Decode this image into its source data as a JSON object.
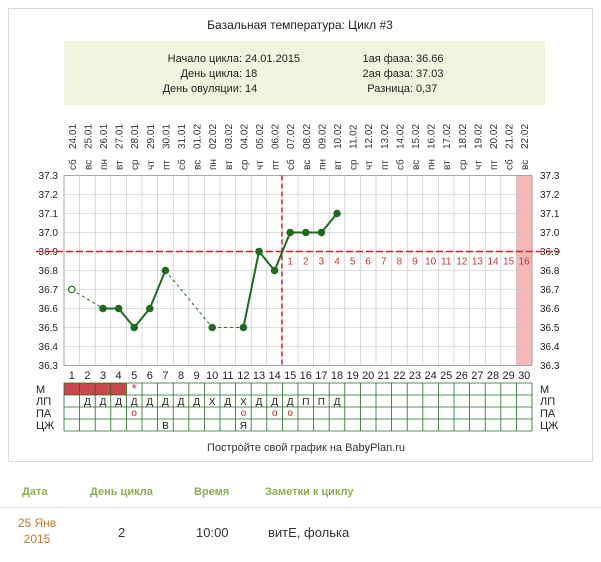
{
  "chart_data": {
    "type": "line",
    "title": "Базальная температура: Цикл #3",
    "info_left": [
      {
        "label": "Начало цикла:",
        "value": "24.01.2015"
      },
      {
        "label": "День цикла:",
        "value": "18"
      },
      {
        "label": "День овуляции:",
        "value": "14"
      }
    ],
    "info_right": [
      {
        "label": "1ая фаза:",
        "value": "36.66"
      },
      {
        "label": "2ая фаза:",
        "value": "37.03"
      },
      {
        "label": "Разница:",
        "value": "0,37"
      }
    ],
    "weekdays": [
      "сб",
      "вс",
      "пн",
      "вт",
      "ср",
      "чт",
      "пт",
      "сб",
      "вс",
      "пн",
      "вт",
      "ср",
      "чт",
      "пт",
      "сб",
      "вс",
      "пн",
      "вт",
      "ср",
      "чт",
      "пт",
      "сб",
      "вс",
      "пн",
      "вт",
      "ср",
      "чт",
      "пт",
      "сб",
      "вс"
    ],
    "dates": [
      "24.01",
      "25.01",
      "26.01",
      "27.01",
      "28.01",
      "29.01",
      "30.01",
      "31.01",
      "01.02",
      "02.02",
      "03.02",
      "04.02",
      "05.02",
      "06.02",
      "07.02",
      "08.02",
      "09.02",
      "10.02",
      "11.02",
      "12.02",
      "13.02",
      "14.02",
      "15.02",
      "16.02",
      "17.02",
      "18.02",
      "19.02",
      "20.02",
      "21.02",
      "22.02"
    ],
    "cycle_days": [
      1,
      2,
      3,
      4,
      5,
      6,
      7,
      8,
      9,
      10,
      11,
      12,
      13,
      14,
      15,
      16,
      17,
      18,
      19,
      20,
      21,
      22,
      23,
      24,
      25,
      26,
      27,
      28,
      29,
      30
    ],
    "y_ticks": [
      "37.3",
      "37.2",
      "37.1",
      "37.0",
      "36.9",
      "36.8",
      "36.7",
      "36.6",
      "36.5",
      "36.4",
      "36.3"
    ],
    "ylim": [
      36.3,
      37.3
    ],
    "coverline": 36.9,
    "ovulation_day": 14,
    "highlight_day": 30,
    "temperatures": [
      {
        "day": 1,
        "temp": 36.7,
        "excluded": true
      },
      {
        "day": 3,
        "temp": 36.6
      },
      {
        "day": 4,
        "temp": 36.6
      },
      {
        "day": 5,
        "temp": 36.5
      },
      {
        "day": 6,
        "temp": 36.6
      },
      {
        "day": 7,
        "temp": 36.8
      },
      {
        "day": 10,
        "temp": 36.5
      },
      {
        "day": 12,
        "temp": 36.5
      },
      {
        "day": 13,
        "temp": 36.9
      },
      {
        "day": 14,
        "temp": 36.8
      },
      {
        "day": 15,
        "temp": 37.0
      },
      {
        "day": 16,
        "temp": 37.0
      },
      {
        "day": 17,
        "temp": 37.0
      },
      {
        "day": 18,
        "temp": 37.1
      }
    ],
    "dashed_gaps": [
      [
        1,
        3
      ],
      [
        7,
        10
      ],
      [
        10,
        12
      ]
    ],
    "phase2_labels": [
      "1",
      "2",
      "3",
      "4",
      "5",
      "6",
      "7",
      "8",
      "9",
      "10",
      "11",
      "12",
      "13",
      "14",
      "15",
      "16"
    ],
    "row_labels": [
      "М",
      "ЛП",
      "ПА",
      "ЦЖ"
    ],
    "menstruation_days": [
      1,
      2,
      3,
      4
    ],
    "menstruation_star_day": 5,
    "lp_marks": [
      {
        "day": 2,
        "v": "Д"
      },
      {
        "day": 3,
        "v": "Д"
      },
      {
        "day": 4,
        "v": "Д"
      },
      {
        "day": 5,
        "v": "Д"
      },
      {
        "day": 6,
        "v": "Д"
      },
      {
        "day": 7,
        "v": "Д"
      },
      {
        "day": 8,
        "v": "Д"
      },
      {
        "day": 9,
        "v": "Д"
      },
      {
        "day": 10,
        "v": "Х"
      },
      {
        "day": 11,
        "v": "Д"
      },
      {
        "day": 12,
        "v": "Х"
      },
      {
        "day": 13,
        "v": "Д"
      },
      {
        "day": 14,
        "v": "Д"
      },
      {
        "day": 15,
        "v": "Д"
      },
      {
        "day": 16,
        "v": "П"
      },
      {
        "day": 17,
        "v": "П"
      },
      {
        "day": 18,
        "v": "Д"
      }
    ],
    "pa_marks": [
      {
        "day": 5,
        "v": "о"
      },
      {
        "day": 12,
        "v": "о"
      },
      {
        "day": 14,
        "v": "о"
      },
      {
        "day": 15,
        "v": "о"
      }
    ],
    "cm_marks": [
      {
        "day": 7,
        "v": "В"
      },
      {
        "day": 12,
        "v": "Я"
      }
    ],
    "footer": "Постройте свой график на BabyPlan.ru",
    "colors": {
      "line": "#1e6b1e",
      "dot": "#1e6b1e",
      "coverline": "#cc2222",
      "menstruation": "#c9484d",
      "highlight": "#f5b8b8",
      "infobox": "#eef5dc",
      "grid": "#bfbfbf",
      "phase2_label": "#cc3333"
    }
  },
  "notes_table": {
    "headers": [
      "Дата",
      "День цикла",
      "Время",
      "Заметки к циклу"
    ],
    "rows": [
      {
        "date_day": "25 Янв",
        "date_year": "2015",
        "cycle_day": "2",
        "time": "10:00",
        "note": "витЕ, фолька"
      }
    ]
  }
}
